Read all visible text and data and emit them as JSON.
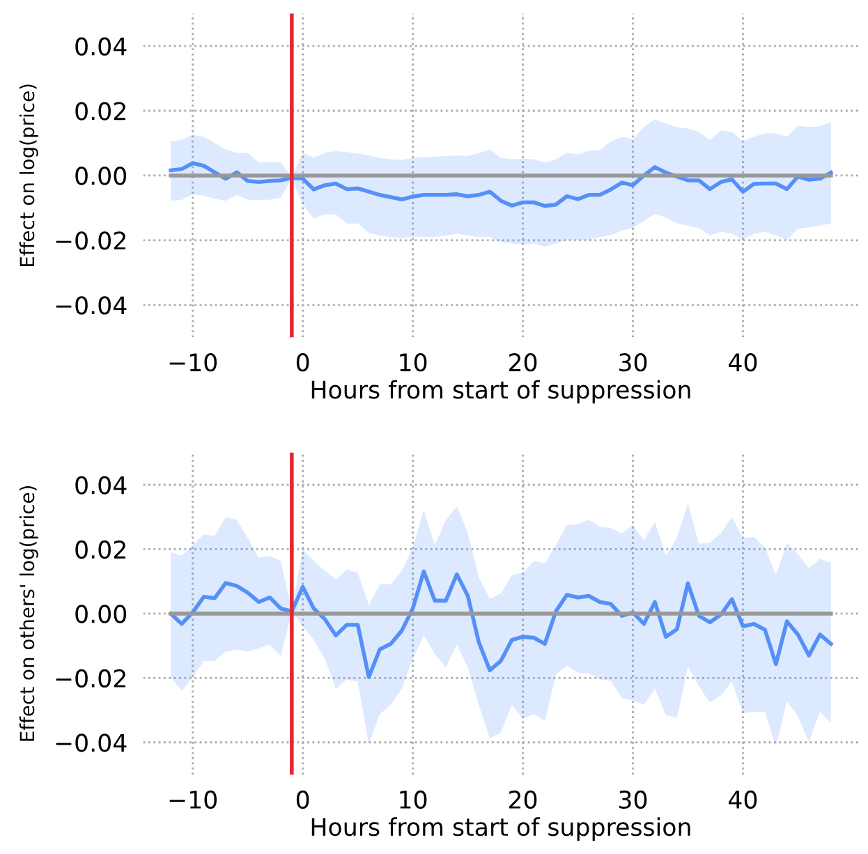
{
  "chart_data": [
    {
      "type": "line",
      "xlabel": "Hours from start of suppression",
      "ylabel": "Effect on log(price)",
      "xlim": [
        -14.5,
        50.5
      ],
      "xticks": [
        {
          "value": -10,
          "label": "−10"
        },
        0,
        10,
        20,
        30,
        40
      ],
      "ylim": [
        -0.05,
        0.05
      ],
      "yticks": [
        {
          "value": -0.04,
          "label": "−0.04"
        },
        {
          "value": -0.02,
          "label": "−0.02"
        },
        {
          "value": 0,
          "label": "0.00"
        },
        {
          "value": 0.02,
          "label": "0.02"
        },
        {
          "value": 0.04,
          "label": "0.04"
        }
      ],
      "grid": true,
      "line_style": "solid",
      "marker": "none",
      "ref_lines": [
        {
          "axis": "x",
          "value": -1,
          "color": "#e8262e"
        }
      ],
      "series": [
        {
          "color": "#5590f8",
          "x": [
            -12,
            -11,
            -10,
            -9,
            -8,
            -7,
            -6,
            -5,
            -4,
            -3,
            -2,
            -1,
            0,
            1,
            2,
            3,
            4,
            5,
            6,
            7,
            8,
            9,
            10,
            11,
            12,
            13,
            14,
            15,
            16,
            17,
            18,
            19,
            20,
            21,
            22,
            23,
            24,
            25,
            26,
            27,
            28,
            29,
            30,
            31,
            32,
            33,
            34,
            35,
            36,
            37,
            38,
            39,
            40,
            41,
            42,
            43,
            44,
            45,
            46,
            47,
            48
          ],
          "values": [
            0.0016,
            0.002,
            0.0038,
            0.003,
            0.001,
            -0.001,
            0.001,
            -0.0017,
            -0.002,
            -0.0017,
            -0.0015,
            -0.0007,
            -0.001,
            -0.0043,
            -0.003,
            -0.0025,
            -0.0042,
            -0.004,
            -0.005,
            -0.006,
            -0.0067,
            -0.0074,
            -0.0065,
            -0.006,
            -0.006,
            -0.006,
            -0.0058,
            -0.0064,
            -0.006,
            -0.005,
            -0.0078,
            -0.0093,
            -0.0083,
            -0.0083,
            -0.0094,
            -0.009,
            -0.0064,
            -0.0073,
            -0.006,
            -0.006,
            -0.0043,
            -0.0022,
            -0.003,
            0,
            0.0026,
            0.0009,
            -0.0003,
            -0.0015,
            -0.0015,
            -0.0042,
            -0.002,
            -0.0012,
            -0.005,
            -0.0026,
            -0.0025,
            -0.0025,
            -0.0042,
            -0.0003,
            -0.0013,
            -0.001,
            0.0009
          ],
          "upper": [
            0.0106,
            0.011,
            0.0125,
            0.012,
            0.01,
            0.008,
            0.007,
            0.007,
            0.004,
            0.004,
            0.004,
            -0.0005,
            0.007,
            0.0055,
            0.007,
            0.0075,
            0.0072,
            0.0068,
            0.0062,
            0.0055,
            0.005,
            0.0048,
            0.0055,
            0.0056,
            0.0058,
            0.006,
            0.0062,
            0.006,
            0.007,
            0.008,
            0.0055,
            0.005,
            0.0052,
            0.005,
            0.004,
            0.005,
            0.007,
            0.0065,
            0.0077,
            0.0078,
            0.0106,
            0.012,
            0.0113,
            0.015,
            0.0174,
            0.016,
            0.015,
            0.0145,
            0.0135,
            0.011,
            0.0139,
            0.0135,
            0.0106,
            0.012,
            0.013,
            0.013,
            0.012,
            0.0154,
            0.015,
            0.0152,
            0.0165
          ],
          "lower": [
            -0.0078,
            -0.0075,
            -0.0058,
            -0.0062,
            -0.0072,
            -0.0078,
            -0.006,
            -0.0075,
            -0.0075,
            -0.0075,
            -0.0068,
            -0.001,
            -0.009,
            -0.0133,
            -0.012,
            -0.012,
            -0.0148,
            -0.0148,
            -0.0177,
            -0.0185,
            -0.019,
            -0.0195,
            -0.019,
            -0.019,
            -0.019,
            -0.0185,
            -0.018,
            -0.0185,
            -0.019,
            -0.019,
            -0.0206,
            -0.021,
            -0.0213,
            -0.021,
            -0.022,
            -0.021,
            -0.0199,
            -0.02,
            -0.0199,
            -0.019,
            -0.0184,
            -0.017,
            -0.0162,
            -0.014,
            -0.0119,
            -0.013,
            -0.0148,
            -0.0155,
            -0.0162,
            -0.0185,
            -0.0174,
            -0.018,
            -0.0199,
            -0.018,
            -0.0174,
            -0.0185,
            -0.0199,
            -0.0165,
            -0.016,
            -0.0155,
            -0.0148
          ]
        },
        {
          "color": "#999999",
          "x": [
            -12,
            48
          ],
          "values": [
            0,
            0
          ]
        }
      ]
    },
    {
      "type": "line",
      "xlabel": "Hours from start of suppression",
      "ylabel": "Effect on others' log(price)",
      "xlim": [
        -14.5,
        50.5
      ],
      "xticks": [
        {
          "value": -10,
          "label": "−10"
        },
        0,
        10,
        20,
        30,
        40
      ],
      "ylim": [
        -0.05,
        0.05
      ],
      "yticks": [
        {
          "value": -0.04,
          "label": "−0.04"
        },
        {
          "value": -0.02,
          "label": "−0.02"
        },
        {
          "value": 0,
          "label": "0.00"
        },
        {
          "value": 0.02,
          "label": "0.02"
        },
        {
          "value": 0.04,
          "label": "0.04"
        }
      ],
      "grid": true,
      "line_style": "solid",
      "marker": "none",
      "ref_lines": [
        {
          "axis": "x",
          "value": -1,
          "color": "#e8262e"
        }
      ],
      "series": [
        {
          "color": "#5590f8",
          "x": [
            -12,
            -11,
            -10,
            -9,
            -8,
            -7,
            -6,
            -5,
            -4,
            -3,
            -2,
            -1,
            0,
            1,
            2,
            3,
            4,
            5,
            6,
            7,
            8,
            9,
            10,
            11,
            12,
            13,
            14,
            15,
            16,
            17,
            18,
            19,
            20,
            21,
            22,
            23,
            24,
            25,
            26,
            27,
            28,
            29,
            30,
            31,
            32,
            33,
            34,
            35,
            36,
            37,
            38,
            39,
            40,
            41,
            42,
            43,
            44,
            45,
            46,
            47,
            48
          ],
          "values": [
            0,
            -0.0032,
            0.0004,
            0.0052,
            0.0048,
            0.0095,
            0.0086,
            0.0065,
            0.0036,
            0.005,
            0.0016,
            0.0007,
            0.0083,
            0.0016,
            -0.0017,
            -0.0068,
            -0.0035,
            -0.0035,
            -0.0197,
            -0.0111,
            -0.0094,
            -0.0053,
            0.0016,
            0.0131,
            0.004,
            0.004,
            0.0122,
            0.0055,
            -0.0089,
            -0.0176,
            -0.0147,
            -0.0082,
            -0.0072,
            -0.0075,
            -0.0094,
            0.0007,
            0.0058,
            0.005,
            0.0055,
            0.0036,
            0.003,
            -0.0007,
            0.0004,
            -0.0032,
            0.0036,
            -0.0072,
            -0.0049,
            0.0094,
            -0.0007,
            -0.0027,
            -0.0003,
            0.0045,
            -0.0039,
            -0.0032,
            -0.005,
            -0.0157,
            -0.0024,
            -0.0065,
            -0.013,
            -0.0065,
            -0.0094
          ],
          "upper": [
            0.0191,
            0.018,
            0.0213,
            0.0246,
            0.0242,
            0.03,
            0.029,
            0.0235,
            0.0174,
            0.018,
            0.0163,
            0.001,
            0.0199,
            0.0163,
            0.0134,
            0.0105,
            0.0137,
            0.0127,
            0.0026,
            0.0091,
            0.0091,
            0.0134,
            0.0206,
            0.0321,
            0.0213,
            0.029,
            0.0334,
            0.025,
            0.0112,
            0.0047,
            0.0062,
            0.012,
            0.0127,
            0.0163,
            0.0156,
            0.0213,
            0.0275,
            0.0278,
            0.0292,
            0.027,
            0.0266,
            0.0249,
            0.0275,
            0.0227,
            0.0285,
            0.018,
            0.0235,
            0.0342,
            0.0217,
            0.022,
            0.0249,
            0.03,
            0.0235,
            0.0238,
            0.0206,
            0.012,
            0.022,
            0.0184,
            0.0141,
            0.017,
            0.0159
          ],
          "lower": [
            -0.0197,
            -0.024,
            -0.0197,
            -0.0147,
            -0.0147,
            -0.0118,
            -0.0111,
            -0.0118,
            -0.0108,
            -0.0096,
            -0.0132,
            0.0005,
            -0.0039,
            -0.0082,
            -0.014,
            -0.0233,
            -0.0204,
            -0.0211,
            -0.0406,
            -0.0312,
            -0.0283,
            -0.0233,
            -0.014,
            -0.0068,
            -0.0125,
            -0.0168,
            -0.0096,
            -0.0168,
            -0.0283,
            -0.0387,
            -0.037,
            -0.0283,
            -0.0327,
            -0.0312,
            -0.0334,
            -0.019,
            -0.0161,
            -0.0183,
            -0.0186,
            -0.0204,
            -0.0209,
            -0.0262,
            -0.0269,
            -0.0283,
            -0.0233,
            -0.0315,
            -0.0324,
            -0.0165,
            -0.0226,
            -0.0276,
            -0.0254,
            -0.0211,
            -0.0309,
            -0.0305,
            -0.0305,
            -0.0413,
            -0.0272,
            -0.0319,
            -0.0399,
            -0.0305,
            -0.0341
          ]
        },
        {
          "color": "#999999",
          "x": [
            -12,
            48
          ],
          "values": [
            0,
            0
          ]
        }
      ]
    }
  ]
}
